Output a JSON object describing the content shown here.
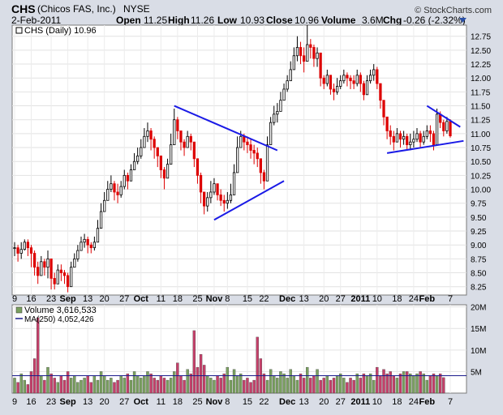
{
  "header": {
    "ticker": "CHS",
    "company": "(Chicos FAS, Inc.)",
    "exchange": "NYSE",
    "date": "2-Feb-2011",
    "open_label": "Open",
    "open": "11.25",
    "high_label": "High",
    "high": "11.26",
    "low_label": "Low",
    "low": "10.93",
    "close_label": "Close",
    "close": "10.96",
    "volume_label": "Volume",
    "volume": "3.6M",
    "chg_label": "Chg",
    "chg": "-0.26 (-2.32%)",
    "watermark": "© StockCharts.com"
  },
  "price_legend": "CHS (Daily) 10.96",
  "volume_legend": "Volume 3,616,533",
  "ma_legend": "MA(250) 4,052,426",
  "colors": {
    "up": "#000000",
    "down": "#dd0000",
    "vol_up": "#7aa060",
    "vol_down": "#c4406a",
    "trend": "#1a1ae6",
    "ma": "#1a1a8c"
  },
  "chart_data": [
    {
      "type": "candlestick",
      "title": "CHS (Daily) 10.96",
      "ylim": [
        8.1,
        12.95
      ],
      "y_ticks": [
        8.25,
        8.5,
        8.75,
        9.0,
        9.25,
        9.5,
        9.75,
        10.0,
        10.25,
        10.5,
        10.75,
        11.0,
        11.25,
        11.5,
        11.75,
        12.0,
        12.25,
        12.5,
        12.75
      ],
      "y_tick_labels": [
        "8.25",
        "8.50",
        "8.75",
        "9.00",
        "9.25",
        "9.50",
        "9.75",
        "10.00",
        "10.25",
        "10.50",
        "10.75",
        "11.00",
        "11.25",
        "11.50",
        "11.75",
        "12.00",
        "12.25",
        "12.50",
        "12.75"
      ],
      "x_tick_labels": [
        "9",
        "16",
        "23",
        "Sep",
        "13",
        "20",
        "27",
        "Oct",
        "11",
        "18",
        "25",
        "Nov",
        "8",
        "15",
        "22",
        "Dec",
        "13",
        "20",
        "27",
        "2011",
        "10",
        "18",
        "24",
        "Feb",
        "7"
      ],
      "grid": true,
      "close": [
        8.95,
        8.85,
        8.92,
        9.05,
        8.95,
        8.85,
        8.6,
        8.45,
        8.7,
        8.6,
        8.75,
        8.4,
        8.3,
        8.55,
        8.5,
        8.45,
        8.25,
        8.6,
        8.75,
        8.9,
        9.05,
        9.1,
        9.0,
        8.95,
        9.05,
        9.3,
        9.6,
        9.8,
        10.0,
        10.1,
        9.95,
        9.9,
        10.05,
        10.25,
        10.15,
        10.35,
        10.5,
        10.6,
        10.75,
        10.95,
        11.05,
        10.9,
        10.75,
        10.6,
        10.35,
        10.2,
        10.45,
        10.8,
        11.25,
        11.05,
        10.85,
        10.75,
        10.95,
        10.85,
        10.55,
        10.25,
        9.95,
        9.7,
        9.85,
        9.95,
        10.1,
        9.9,
        9.8,
        9.75,
        9.8,
        9.9,
        10.3,
        10.75,
        10.95,
        10.85,
        10.8,
        10.7,
        10.65,
        10.55,
        10.3,
        10.15,
        10.8,
        11.2,
        11.35,
        11.4,
        11.6,
        11.8,
        11.95,
        12.15,
        12.4,
        12.55,
        12.4,
        12.3,
        12.6,
        12.55,
        12.35,
        12.45,
        12.0,
        11.9,
        12.05,
        11.8,
        11.75,
        11.85,
        11.95,
        12.05,
        12.0,
        11.95,
        11.9,
        12.05,
        11.9,
        11.7,
        11.95,
        12.05,
        12.15,
        11.9,
        11.6,
        11.3,
        11.05,
        10.95,
        10.85,
        11.0,
        10.9,
        10.95,
        10.8,
        10.85,
        10.9,
        11.0,
        10.85,
        10.95,
        11.05,
        11.0,
        10.8,
        11.35,
        11.2,
        11.05,
        11.22,
        10.96
      ],
      "high": [
        9.05,
        9.0,
        9.05,
        9.1,
        9.1,
        9.0,
        8.9,
        8.7,
        8.8,
        8.75,
        8.9,
        8.75,
        8.5,
        8.65,
        8.65,
        8.55,
        8.5,
        8.7,
        8.85,
        9.0,
        9.15,
        9.2,
        9.15,
        9.05,
        9.15,
        9.45,
        9.75,
        9.95,
        10.15,
        10.25,
        10.15,
        10.1,
        10.15,
        10.35,
        10.3,
        10.45,
        10.65,
        10.75,
        10.9,
        11.1,
        11.2,
        11.1,
        10.95,
        10.75,
        10.6,
        10.4,
        10.55,
        11.0,
        11.45,
        11.3,
        11.05,
        10.9,
        11.05,
        11.0,
        10.8,
        10.5,
        10.3,
        9.95,
        9.95,
        10.15,
        10.2,
        10.1,
        10.0,
        9.9,
        9.95,
        10.1,
        10.45,
        10.95,
        11.05,
        11.0,
        10.95,
        10.9,
        10.8,
        10.75,
        10.55,
        10.35,
        10.95,
        11.3,
        11.5,
        11.55,
        11.75,
        11.9,
        12.05,
        12.3,
        12.55,
        12.75,
        12.65,
        12.55,
        12.95,
        12.7,
        12.6,
        12.55,
        12.35,
        12.05,
        12.15,
        12.05,
        11.9,
        12.0,
        12.05,
        12.15,
        12.1,
        12.05,
        12.05,
        12.15,
        12.1,
        11.95,
        12.05,
        12.15,
        12.25,
        12.2,
        11.8,
        11.6,
        11.3,
        11.15,
        11.05,
        11.1,
        11.05,
        11.05,
        11.0,
        11.0,
        11.05,
        11.1,
        11.05,
        11.05,
        11.15,
        11.15,
        11.05,
        11.45,
        11.4,
        11.25,
        11.3,
        11.26
      ],
      "low": [
        8.8,
        8.7,
        8.75,
        8.9,
        8.8,
        8.6,
        8.45,
        8.3,
        8.5,
        8.45,
        8.4,
        8.2,
        8.2,
        8.35,
        8.35,
        8.3,
        8.15,
        8.35,
        8.6,
        8.7,
        8.9,
        8.95,
        8.85,
        8.85,
        8.9,
        9.1,
        9.35,
        9.6,
        9.8,
        9.95,
        9.8,
        9.75,
        9.85,
        10.0,
        10.0,
        10.15,
        10.35,
        10.45,
        10.55,
        10.75,
        10.85,
        10.7,
        10.55,
        10.4,
        10.2,
        10.0,
        10.2,
        10.5,
        10.95,
        10.9,
        10.7,
        10.6,
        10.75,
        10.7,
        10.4,
        10.1,
        9.75,
        9.55,
        9.6,
        9.75,
        9.9,
        9.8,
        9.7,
        9.6,
        9.65,
        9.75,
        10.0,
        10.4,
        10.75,
        10.7,
        10.65,
        10.55,
        10.45,
        10.4,
        10.1,
        10.0,
        10.5,
        11.0,
        11.15,
        11.2,
        11.4,
        11.6,
        11.75,
        11.95,
        12.2,
        12.3,
        12.25,
        12.1,
        12.4,
        12.35,
        12.2,
        12.2,
        11.85,
        11.8,
        11.85,
        11.7,
        11.6,
        11.7,
        11.8,
        11.9,
        11.85,
        11.8,
        11.8,
        11.85,
        11.75,
        11.6,
        11.75,
        11.9,
        11.95,
        11.8,
        11.45,
        11.15,
        10.9,
        10.8,
        10.7,
        10.85,
        10.75,
        10.8,
        10.7,
        10.7,
        10.75,
        10.85,
        10.75,
        10.8,
        10.9,
        10.85,
        10.7,
        11.0,
        11.1,
        10.95,
        11.0,
        10.93
      ]
    },
    {
      "type": "bar",
      "title": "Volume 3,616,533",
      "ylim": [
        0,
        20.5
      ],
      "y_ticks": [
        5,
        10,
        15,
        20
      ],
      "y_tick_labels": [
        "5M",
        "10M",
        "15M",
        "20M"
      ],
      "values": [
        3.5,
        2.5,
        4.5,
        3.0,
        2.0,
        5.0,
        8.0,
        17.5,
        4.0,
        3.0,
        6.0,
        4.5,
        3.5,
        2.5,
        4.0,
        3.0,
        5.0,
        3.5,
        4.0,
        2.5,
        3.0,
        3.5,
        4.0,
        2.5,
        4.0,
        3.0,
        5.0,
        4.0,
        3.0,
        3.5,
        2.5,
        3.0,
        4.0,
        3.5,
        4.5,
        3.0,
        5.0,
        4.0,
        3.5,
        4.0,
        5.0,
        4.5,
        3.5,
        3.0,
        4.0,
        3.5,
        3.0,
        3.5,
        5.0,
        7.0,
        4.0,
        3.0,
        5.5,
        4.5,
        14.5,
        6.0,
        9.0,
        6.5,
        4.0,
        3.5,
        3.0,
        4.0,
        3.5,
        4.5,
        6.0,
        3.0,
        5.5,
        4.0,
        4.5,
        3.0,
        3.5,
        2.5,
        3.0,
        13.0,
        8.0,
        4.5,
        3.0,
        5.5,
        4.0,
        3.5,
        5.0,
        4.5,
        3.5,
        5.5,
        4.0,
        3.0,
        4.5,
        3.5,
        6.0,
        3.5,
        4.0,
        5.5,
        3.0,
        3.5,
        4.0,
        3.0,
        3.5,
        4.0,
        4.5,
        3.5,
        2.5,
        3.5,
        3.0,
        4.5,
        3.5,
        4.5,
        4.0,
        4.5,
        3.0,
        6.0,
        4.0,
        5.5,
        4.5,
        5.0,
        4.0,
        3.5,
        4.5,
        5.0,
        5.0,
        4.5,
        4.0,
        4.5,
        5.0,
        4.5,
        3.0,
        4.0,
        4.5,
        4.0,
        4.5,
        3.6
      ],
      "ma250": 4.05
    }
  ],
  "trendlines": [
    {
      "x0": 48,
      "y0": 11.5,
      "x1": 79,
      "y1": 10.7
    },
    {
      "x0": 60,
      "y0": 9.45,
      "x1": 81,
      "y1": 10.15
    },
    {
      "x0": 124,
      "y0": 11.5,
      "x1": 134,
      "y1": 11.12
    },
    {
      "x0": 112,
      "y0": 10.65,
      "x1": 135,
      "y1": 10.87
    }
  ]
}
